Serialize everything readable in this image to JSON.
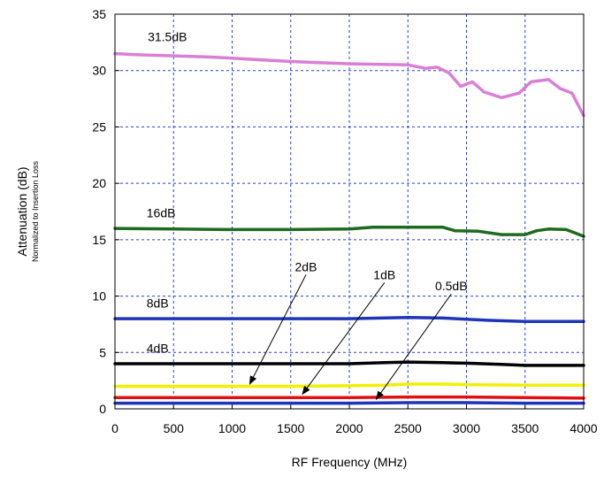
{
  "chart_data": {
    "type": "line",
    "xlabel": "RF Frequency (MHz)",
    "ylabel": "Attenuation (dB)",
    "ylabel_sub": "Normalized to Insertion Loss",
    "xlim": [
      0,
      4000
    ],
    "ylim": [
      0,
      35
    ],
    "xticks": [
      0,
      500,
      1000,
      1500,
      2000,
      2500,
      3000,
      3500,
      4000
    ],
    "yticks": [
      0,
      5,
      10,
      15,
      20,
      25,
      30,
      35
    ],
    "grid": true,
    "series": [
      {
        "name": "31.5dB",
        "color": "#d97fd6",
        "x": [
          0,
          200,
          500,
          800,
          1000,
          1500,
          2000,
          2500,
          2650,
          2750,
          2850,
          2950,
          3050,
          3150,
          3300,
          3450,
          3550,
          3700,
          3800,
          3900,
          4000
        ],
        "y": [
          31.5,
          31.4,
          31.3,
          31.2,
          31.1,
          30.8,
          30.6,
          30.5,
          30.2,
          30.3,
          29.8,
          28.6,
          29.0,
          28.1,
          27.6,
          28.0,
          29.0,
          29.2,
          28.4,
          28.0,
          26.0
        ]
      },
      {
        "name": "16dB",
        "color": "#1e6a1e",
        "x": [
          0,
          500,
          1000,
          1500,
          2000,
          2200,
          2500,
          2800,
          2900,
          3100,
          3300,
          3500,
          3600,
          3700,
          3850,
          4000
        ],
        "y": [
          16.0,
          15.95,
          15.9,
          15.9,
          15.95,
          16.1,
          16.1,
          16.1,
          15.8,
          15.75,
          15.45,
          15.45,
          15.8,
          15.95,
          15.9,
          15.3
        ]
      },
      {
        "name": "8dB",
        "color": "#1f35b8",
        "x": [
          0,
          500,
          1000,
          1500,
          2000,
          2500,
          2800,
          3000,
          3200,
          3500,
          3800,
          4000
        ],
        "y": [
          8.0,
          8.0,
          8.0,
          8.0,
          8.0,
          8.1,
          8.05,
          7.95,
          7.85,
          7.75,
          7.75,
          7.75
        ]
      },
      {
        "name": "4dB",
        "color": "#000000",
        "x": [
          0,
          500,
          1000,
          1500,
          2000,
          2300,
          2500,
          2800,
          3000,
          3300,
          3500,
          4000
        ],
        "y": [
          4.0,
          4.0,
          4.0,
          4.0,
          4.0,
          4.1,
          4.15,
          4.1,
          4.05,
          3.95,
          3.85,
          3.85
        ]
      },
      {
        "name": "2dB",
        "color": "#f2f000",
        "x": [
          0,
          500,
          1000,
          1500,
          2000,
          2300,
          2500,
          2800,
          3000,
          3500,
          4000
        ],
        "y": [
          2.0,
          2.0,
          2.0,
          2.0,
          2.05,
          2.1,
          2.2,
          2.2,
          2.15,
          2.1,
          2.1
        ]
      },
      {
        "name": "1dB",
        "color": "#e01010",
        "x": [
          0,
          500,
          1000,
          1500,
          2000,
          2500,
          3000,
          3500,
          4000
        ],
        "y": [
          1.0,
          1.0,
          1.0,
          1.0,
          1.0,
          1.05,
          1.05,
          1.0,
          0.95
        ]
      },
      {
        "name": "0.5dB",
        "color": "#1f35b8",
        "x": [
          0,
          500,
          1000,
          1500,
          2000,
          2500,
          3000,
          3500,
          4000
        ],
        "y": [
          0.5,
          0.5,
          0.5,
          0.5,
          0.5,
          0.55,
          0.55,
          0.5,
          0.5
        ]
      }
    ],
    "annotations": [
      {
        "text": "31.5dB",
        "x": 280,
        "y": 32.6
      },
      {
        "text": "16dB",
        "x": 270,
        "y": 17.0
      },
      {
        "text": "8dB",
        "x": 270,
        "y": 9.0
      },
      {
        "text": "4dB",
        "x": 270,
        "y": 5.0
      },
      {
        "text": "2dB",
        "x": 1630,
        "y": 12.2,
        "arrow_to": [
          1150,
          2.2
        ]
      },
      {
        "text": "1dB",
        "x": 2300,
        "y": 11.5,
        "arrow_to": [
          1600,
          1.3
        ]
      },
      {
        "text": "0.5dB",
        "x": 2870,
        "y": 10.5,
        "arrow_to": [
          2230,
          0.85
        ]
      }
    ]
  }
}
